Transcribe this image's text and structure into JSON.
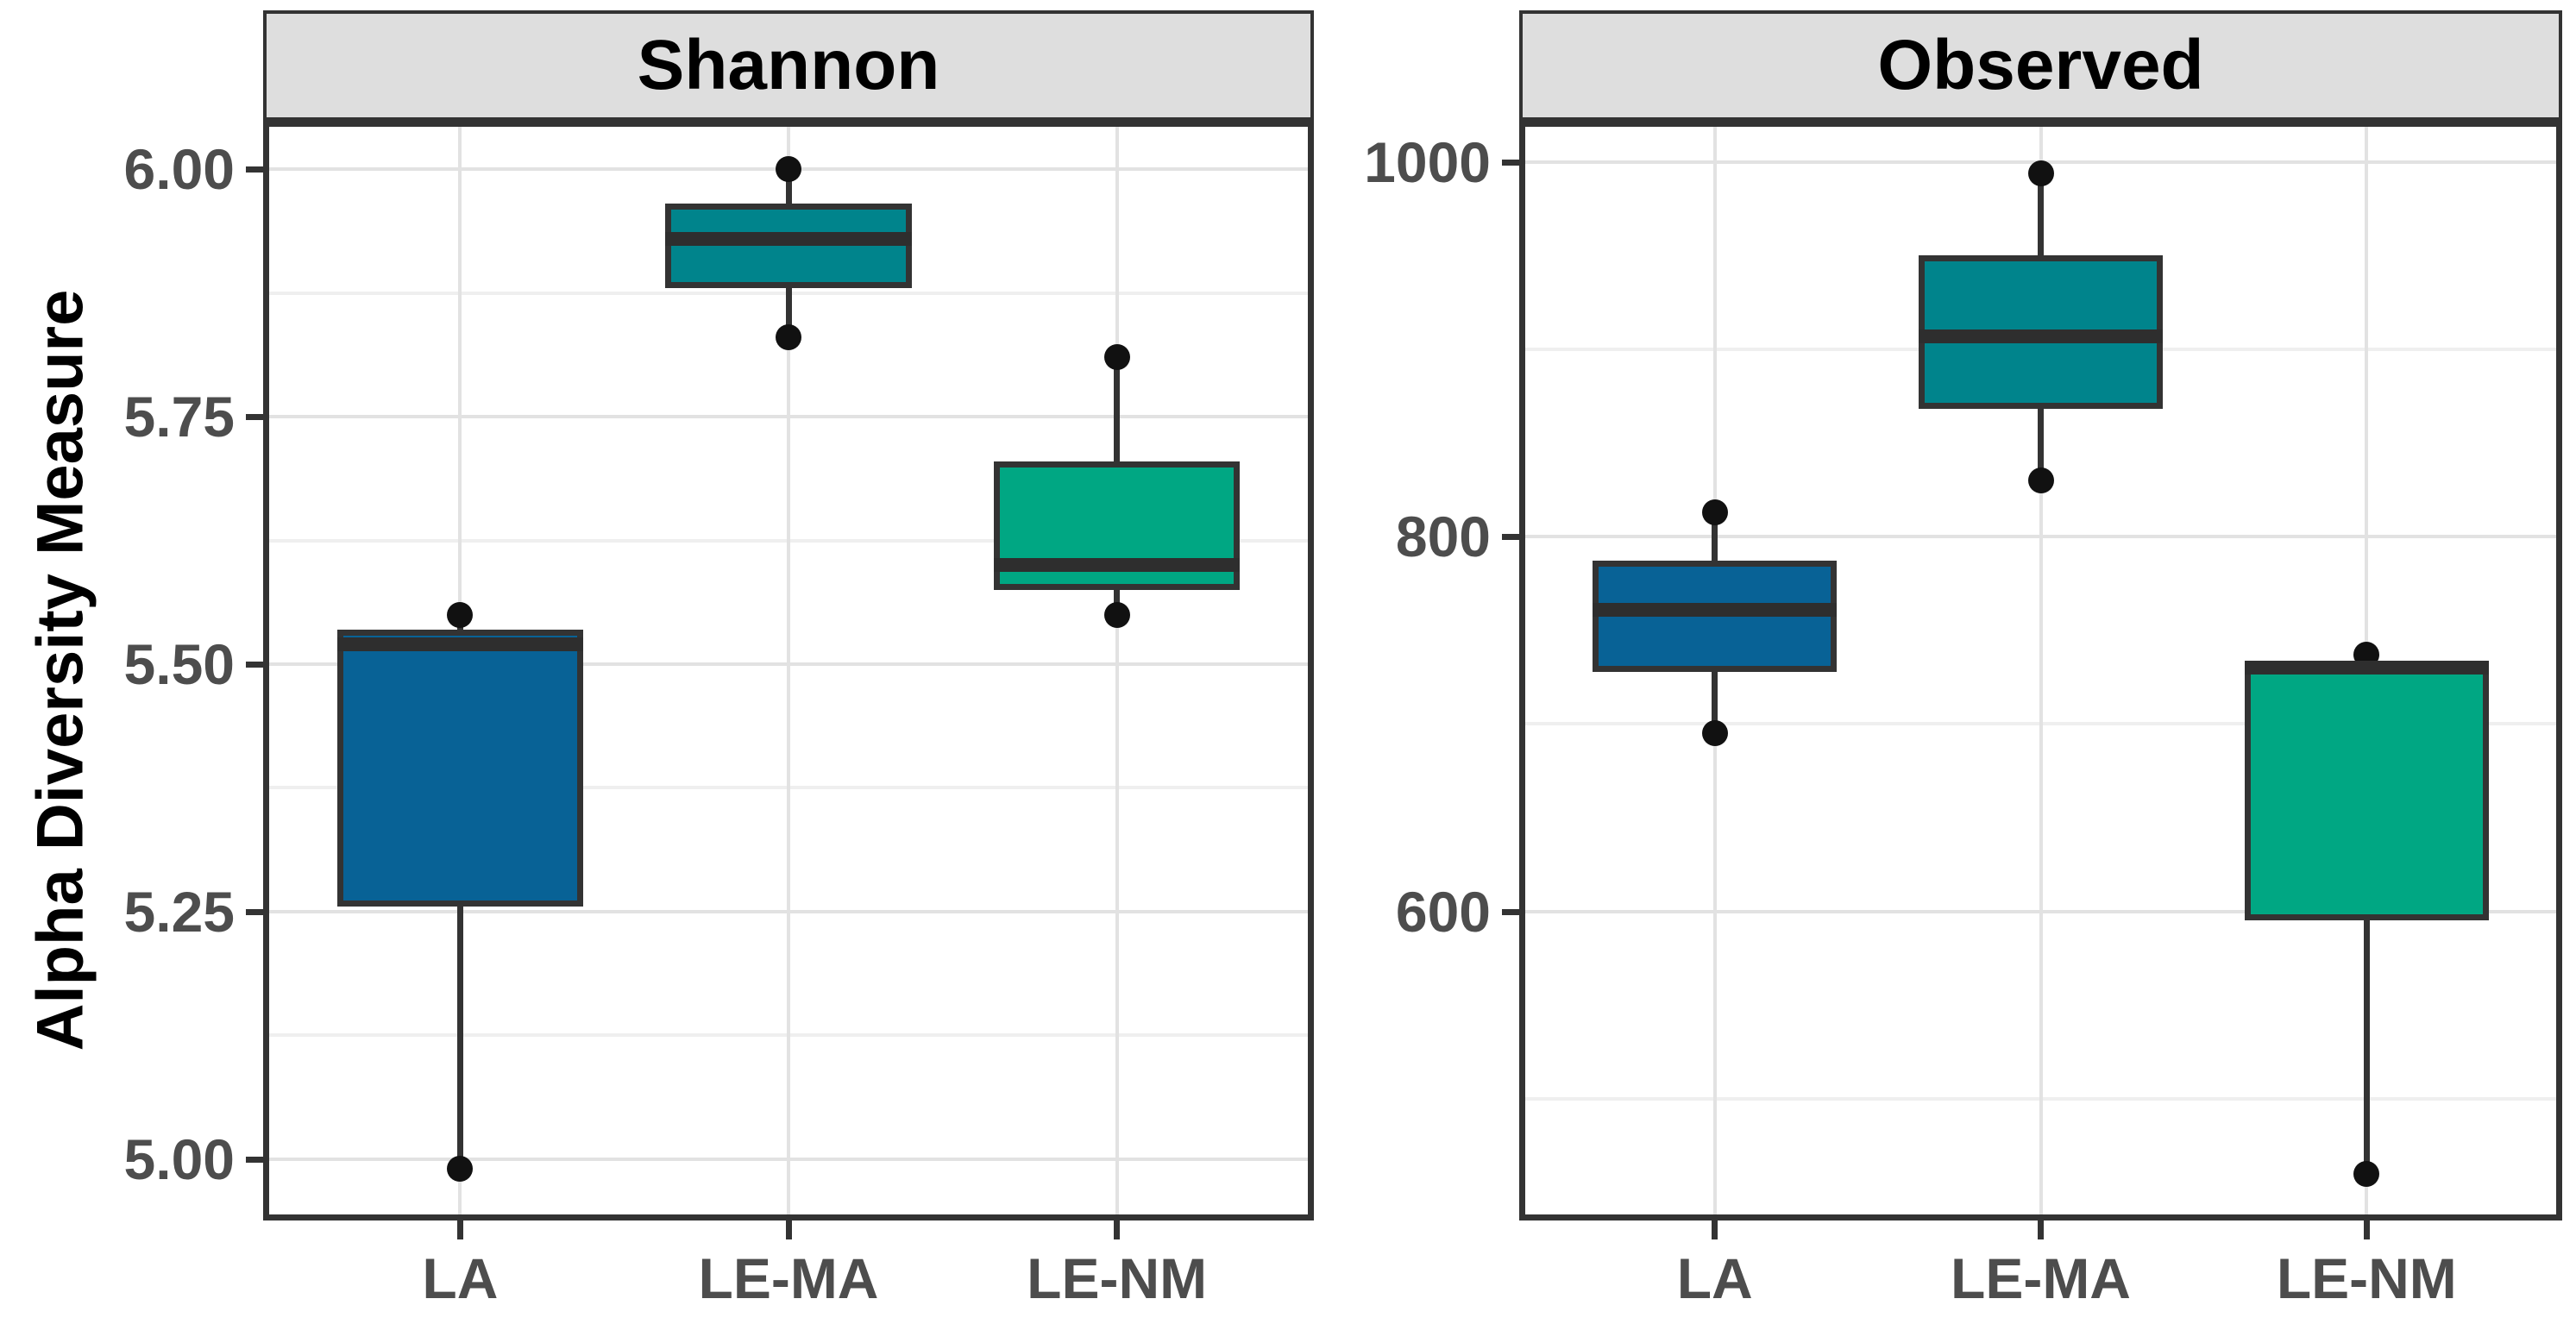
{
  "figure_kind": "faceted boxplot figure",
  "y_axis_title": "Alpha Diversity Measure",
  "colors": {
    "box_fill_by_category": {
      "LA": "#086296",
      "LE-MA": "#00848C",
      "LE-NM": "#00A783"
    },
    "line": "#333333",
    "median_line": "#2E2E2E",
    "point": "#111111",
    "strip_bg": "#DEDEDE",
    "grid_major": "#E2E2E2",
    "grid_minor": "#EFEFEF",
    "tick_label_text": "#4D4D4D",
    "strip_text": "#000000",
    "panel_bg": "#FFFFFF"
  },
  "chart_data": [
    {
      "type": "boxplot",
      "facet": "Shannon",
      "categories": [
        "LA",
        "LE-MA",
        "LE-NM"
      ],
      "ylim": [
        4.938,
        6.049
      ],
      "yticks_major": [
        5.0,
        5.25,
        5.5,
        5.75,
        6.0
      ],
      "ytick_labels": [
        "5.00",
        "5.25",
        "5.50",
        "5.75",
        "6.00"
      ],
      "yticks_minor": [
        5.125,
        5.375,
        5.625,
        5.875
      ],
      "grid": "major+minor horizontal, major vertical at categories",
      "legend": "none",
      "boxes": [
        {
          "category": "LA",
          "whisker_low": 4.99,
          "q1": 5.255,
          "median": 5.52,
          "q3": 5.535,
          "whisker_high": 5.55,
          "points": [
            4.99,
            5.55
          ]
        },
        {
          "category": "LE-MA",
          "whisker_low": 5.83,
          "q1": 5.88,
          "median": 5.93,
          "q3": 5.965,
          "whisker_high": 6.0,
          "points": [
            5.83,
            6.0
          ]
        },
        {
          "category": "LE-NM",
          "whisker_low": 5.55,
          "q1": 5.575,
          "median": 5.6,
          "q3": 5.705,
          "whisker_high": 5.81,
          "points": [
            5.55,
            5.81
          ]
        }
      ]
    },
    {
      "type": "boxplot",
      "facet": "Observed",
      "categories": [
        "LA",
        "LE-MA",
        "LE-NM"
      ],
      "ylim": [
        435,
        1022
      ],
      "yticks_major": [
        600,
        800,
        1000
      ],
      "ytick_labels": [
        "600",
        "800",
        "1000"
      ],
      "yticks_minor": [
        500,
        700,
        900
      ],
      "grid": "major+minor horizontal, major vertical at categories",
      "legend": "none",
      "boxes": [
        {
          "category": "LA",
          "whisker_low": 695,
          "q1": 728,
          "median": 761,
          "q3": 787,
          "whisker_high": 813,
          "points": [
            695,
            813
          ]
        },
        {
          "category": "LE-MA",
          "whisker_low": 830,
          "q1": 868,
          "median": 907,
          "q3": 950,
          "whisker_high": 994,
          "points": [
            830,
            994
          ]
        },
        {
          "category": "LE-NM",
          "whisker_low": 460,
          "q1": 595,
          "median": 730,
          "q3": 734,
          "whisker_high": 737,
          "points": [
            460,
            737
          ]
        }
      ]
    }
  ]
}
